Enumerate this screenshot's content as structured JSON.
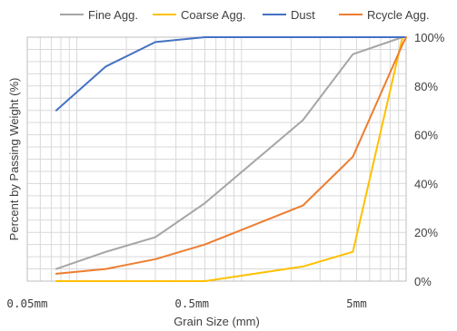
{
  "chart_data": {
    "type": "line",
    "xscale": "log",
    "xlim": [
      0.05,
      10
    ],
    "ylim": [
      0,
      100
    ],
    "xlabel": "Grain Size (mm)",
    "ylabel": "Percent by Passing Weight (%)",
    "x_ticks": [
      {
        "value": 0.05,
        "label": "0.05mm"
      },
      {
        "value": 0.5,
        "label": "0.5mm"
      },
      {
        "value": 5,
        "label": "5mm"
      }
    ],
    "y_ticks": [
      {
        "value": 0,
        "label": "0%"
      },
      {
        "value": 20,
        "label": "20%"
      },
      {
        "value": 40,
        "label": "40%"
      },
      {
        "value": 60,
        "label": "60%"
      },
      {
        "value": 80,
        "label": "80%"
      },
      {
        "value": 100,
        "label": "100%"
      }
    ],
    "y_axis_side": "right",
    "grid": true,
    "legend_position": "top",
    "series": [
      {
        "name": "Fine Agg.",
        "color": "#a5a5a5",
        "points": [
          [
            0.075,
            5
          ],
          [
            0.15,
            12
          ],
          [
            0.3,
            18
          ],
          [
            0.6,
            32
          ],
          [
            2.36,
            66
          ],
          [
            4.75,
            93
          ],
          [
            9.5,
            100
          ],
          [
            10,
            100
          ]
        ]
      },
      {
        "name": "Coarse Agg.",
        "color": "#ffc000",
        "points": [
          [
            0.075,
            0
          ],
          [
            0.6,
            0
          ],
          [
            2.36,
            6
          ],
          [
            4.75,
            12
          ],
          [
            9.5,
            100
          ],
          [
            10,
            100
          ]
        ]
      },
      {
        "name": "Dust",
        "color": "#4472c4",
        "points": [
          [
            0.075,
            70
          ],
          [
            0.15,
            88
          ],
          [
            0.3,
            98
          ],
          [
            0.6,
            100
          ],
          [
            10,
            100
          ]
        ]
      },
      {
        "name": "Rcycle Agg.",
        "color": "#ed7d31",
        "points": [
          [
            0.075,
            3
          ],
          [
            0.15,
            5
          ],
          [
            0.3,
            9
          ],
          [
            0.6,
            15
          ],
          [
            2.36,
            31
          ],
          [
            4.75,
            51
          ],
          [
            9.5,
            97
          ],
          [
            10,
            100
          ]
        ]
      }
    ]
  }
}
